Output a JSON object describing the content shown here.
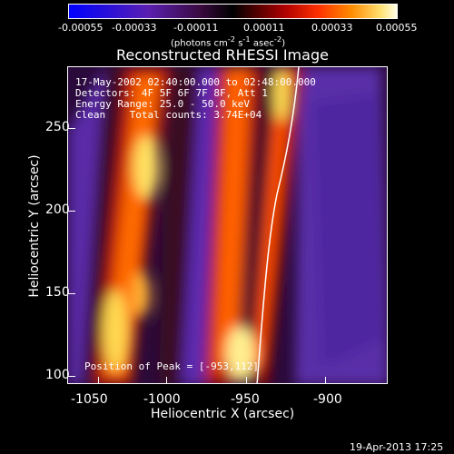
{
  "colorbar": {
    "tick_labels": [
      "-0.00055",
      "-0.00033",
      "-0.00011",
      "0.00011",
      "0.00033",
      "0.00055"
    ],
    "units_html": "(photons cm<sup>-2</sup> s<sup>-1</sup> asec<sup>-2</sup>)"
  },
  "plot": {
    "title": "Reconstructed RHESSI Image",
    "info_lines": [
      "17-May-2002 02:40:00.000 to 02:48:00.000",
      "Detectors: 4F 5F 6F 7F 8F, Att 1",
      "Energy Range: 25.0 - 50.0 keV",
      "Clean    Total counts: 3.74E+04"
    ],
    "peak_label": "Position of Peak = [-953,112]",
    "x_axis": {
      "label": "Heliocentric X (arcsec)",
      "ticks": [
        "-1050",
        "-1000",
        "-950",
        "-900"
      ]
    },
    "y_axis": {
      "label": "Heliocentric Y (arcsec)",
      "ticks": [
        "250",
        "200",
        "150",
        "100"
      ]
    }
  },
  "footer": {
    "timestamp": "19-Apr-2013 17:25"
  }
}
